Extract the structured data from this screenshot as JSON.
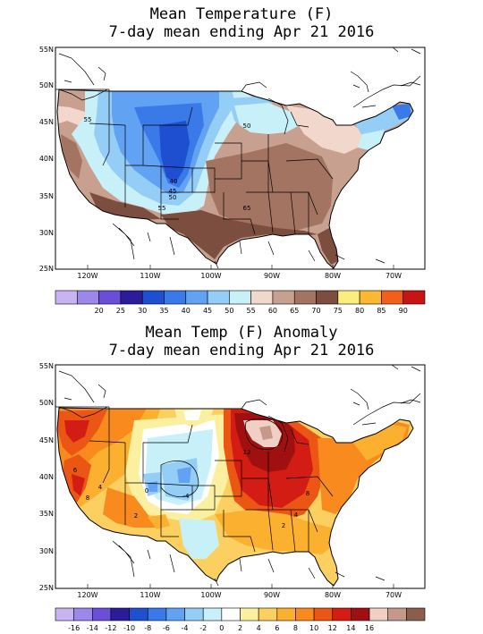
{
  "panels": [
    {
      "title_line1": "Mean Temperature (F)",
      "title_line2": "7-day mean ending Apr 21 2016",
      "lat_labels": [
        "55N",
        "50N",
        "45N",
        "40N",
        "35N",
        "30N",
        "25N"
      ],
      "lon_labels": [
        "120W",
        "110W",
        "100W",
        "90W",
        "80W",
        "70W"
      ],
      "contour_labels": [
        "55",
        "50",
        "40",
        "45",
        "50",
        "55",
        "65"
      ],
      "colorbar": {
        "colors": [
          "#c8b4f0",
          "#9c87ea",
          "#6a4ed8",
          "#2c1c9a",
          "#1e4fd0",
          "#3a79e8",
          "#62a2f2",
          "#94cdf6",
          "#c8f0f8",
          "#f2d8cc",
          "#c8a090",
          "#a47462",
          "#7c4e40",
          "#faee80",
          "#fcb830",
          "#f06018",
          "#c81414"
        ],
        "labels": [
          "20",
          "25",
          "30",
          "35",
          "40",
          "45",
          "50",
          "55",
          "60",
          "65",
          "70",
          "75",
          "80",
          "85",
          "90"
        ]
      }
    },
    {
      "title_line1": "Mean Temp (F) Anomaly",
      "title_line2": "7-day mean ending Apr 21 2016",
      "lat_labels": [
        "55N",
        "50N",
        "45N",
        "40N",
        "35N",
        "30N",
        "25N"
      ],
      "lon_labels": [
        "120W",
        "110W",
        "100W",
        "90W",
        "80W",
        "70W"
      ],
      "contour_labels": [
        "12",
        "6",
        "8",
        "4",
        "-4",
        "2",
        "0",
        "4",
        "8",
        "2"
      ],
      "colorbar": {
        "colors": [
          "#c8b4f0",
          "#9c87ea",
          "#6a4ed8",
          "#2c1c9a",
          "#1e4fd0",
          "#3a79e8",
          "#62a2f2",
          "#94cdf6",
          "#c8f0f8",
          "#ffffff",
          "#faf0a0",
          "#fcd060",
          "#fcb030",
          "#f88a1e",
          "#ec5614",
          "#d21c14",
          "#a01010",
          "#f0d0c4",
          "#c4988a",
          "#8c5c4c"
        ],
        "labels": [
          "-16",
          "-14",
          "-12",
          "-10",
          "-8",
          "-6",
          "-4",
          "-2",
          "0",
          "2",
          "4",
          "6",
          "8",
          "10",
          "12",
          "14",
          "16"
        ]
      }
    }
  ]
}
